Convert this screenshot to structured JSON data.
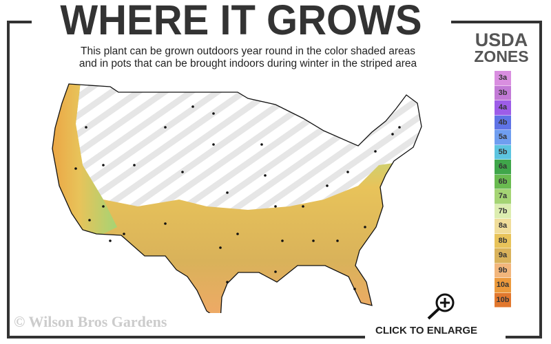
{
  "header": {
    "title": "WHERE IT GROWS",
    "subtitle_line1": "This plant can be grown outdoors year round in the color shaded areas",
    "subtitle_line2": "and in pots that can be brought indoors during winter in the striped area"
  },
  "legend": {
    "title_line1": "USDA",
    "title_line2": "ZONES",
    "zones": [
      {
        "label": "3a",
        "color": "#d98ee0"
      },
      {
        "label": "3b",
        "color": "#c27ad6"
      },
      {
        "label": "4a",
        "color": "#9d5de8"
      },
      {
        "label": "4b",
        "color": "#5f73e6"
      },
      {
        "label": "5a",
        "color": "#6f9ef0"
      },
      {
        "label": "5b",
        "color": "#5cc4e0"
      },
      {
        "label": "6a",
        "color": "#3fa64a"
      },
      {
        "label": "6b",
        "color": "#6abb50"
      },
      {
        "label": "7a",
        "color": "#a5d474"
      },
      {
        "label": "7b",
        "color": "#dcedb0"
      },
      {
        "label": "8a",
        "color": "#f0dd9a"
      },
      {
        "label": "8b",
        "color": "#e8c35a"
      },
      {
        "label": "9a",
        "color": "#d9b25a"
      },
      {
        "label": "9b",
        "color": "#f2b67c"
      },
      {
        "label": "10a",
        "color": "#ec9a3c"
      },
      {
        "label": "10b",
        "color": "#e2782e"
      }
    ]
  },
  "footer": {
    "copyright": "© Wilson Bros Gardens",
    "enlarge_label": "CLICK TO ENLARGE",
    "zoom_icon": "magnifier-plus-icon"
  },
  "colors": {
    "frame": "#333333",
    "stripe": "#e6e6e6"
  }
}
